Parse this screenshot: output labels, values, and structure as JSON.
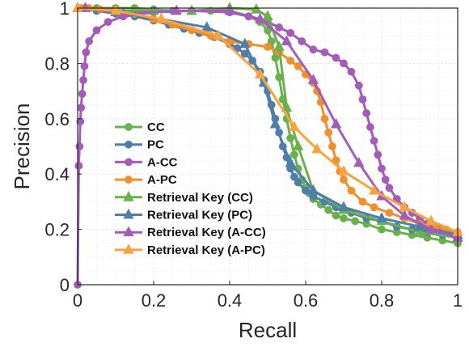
{
  "chart_data": {
    "type": "line",
    "xlabel": "Recall",
    "ylabel": "Precision",
    "xlim": [
      0,
      1
    ],
    "ylim": [
      0,
      1
    ],
    "xticks": [
      "0",
      "0.2",
      "0.4",
      "0.6",
      "0.8",
      "1"
    ],
    "yticks": [
      "0",
      "0.2",
      "0.4",
      "0.6",
      "0.8",
      "1"
    ],
    "grid": true,
    "legend_position": "center-left",
    "series": [
      {
        "name": "CC",
        "color": "#6ab04c",
        "marker": "circle",
        "x": [
          0.02,
          0.05,
          0.1,
          0.15,
          0.2,
          0.25,
          0.3,
          0.35,
          0.4,
          0.45,
          0.48,
          0.5,
          0.51,
          0.52,
          0.53,
          0.54,
          0.55,
          0.56,
          0.57,
          0.58,
          0.59,
          0.6,
          0.61,
          0.62,
          0.64,
          0.66,
          0.68,
          0.7,
          0.73,
          0.76,
          0.8,
          0.84,
          0.88,
          0.92,
          0.96,
          1.0
        ],
        "y": [
          1.0,
          1.0,
          1.0,
          1.0,
          0.995,
          0.99,
          0.99,
          0.99,
          0.985,
          0.97,
          0.95,
          0.92,
          0.88,
          0.82,
          0.75,
          0.67,
          0.6,
          0.53,
          0.47,
          0.42,
          0.38,
          0.35,
          0.33,
          0.31,
          0.29,
          0.27,
          0.25,
          0.24,
          0.23,
          0.22,
          0.2,
          0.19,
          0.18,
          0.17,
          0.16,
          0.15
        ]
      },
      {
        "name": "PC",
        "color": "#4e7fab",
        "marker": "circle",
        "x": [
          0.02,
          0.05,
          0.1,
          0.15,
          0.2,
          0.24,
          0.28,
          0.32,
          0.36,
          0.4,
          0.42,
          0.44,
          0.46,
          0.48,
          0.49,
          0.5,
          0.51,
          0.52,
          0.53,
          0.54,
          0.55,
          0.56,
          0.57,
          0.58,
          0.6,
          0.62,
          0.65,
          0.68,
          0.72,
          0.76,
          0.8,
          0.84,
          0.88,
          0.92,
          0.96,
          1.0
        ],
        "y": [
          1.0,
          0.99,
          0.98,
          0.97,
          0.955,
          0.94,
          0.925,
          0.91,
          0.895,
          0.87,
          0.855,
          0.835,
          0.81,
          0.77,
          0.74,
          0.7,
          0.65,
          0.6,
          0.55,
          0.5,
          0.46,
          0.42,
          0.39,
          0.37,
          0.34,
          0.32,
          0.3,
          0.28,
          0.26,
          0.24,
          0.23,
          0.21,
          0.2,
          0.19,
          0.18,
          0.17
        ]
      },
      {
        "name": "A-CC",
        "color": "#a35db8",
        "marker": "circle",
        "x": [
          0.0,
          0.003,
          0.005,
          0.007,
          0.009,
          0.012,
          0.015,
          0.018,
          0.022,
          0.03,
          0.05,
          0.08,
          0.12,
          0.2,
          0.3,
          0.4,
          0.45,
          0.5,
          0.53,
          0.56,
          0.59,
          0.62,
          0.65,
          0.68,
          0.7,
          0.72,
          0.74,
          0.75,
          0.76,
          0.77,
          0.78,
          0.79,
          0.8,
          0.81,
          0.82,
          0.84,
          0.86,
          0.88,
          0.9,
          0.92,
          0.95,
          1.0
        ],
        "y": [
          0.0,
          0.43,
          0.5,
          0.59,
          0.64,
          0.69,
          0.74,
          0.79,
          0.84,
          0.88,
          0.92,
          0.95,
          0.97,
          0.985,
          0.99,
          0.985,
          0.97,
          0.95,
          0.93,
          0.91,
          0.88,
          0.85,
          0.84,
          0.82,
          0.8,
          0.77,
          0.72,
          0.67,
          0.62,
          0.57,
          0.52,
          0.47,
          0.42,
          0.38,
          0.35,
          0.31,
          0.28,
          0.26,
          0.24,
          0.22,
          0.2,
          0.18
        ]
      },
      {
        "name": "A-PC",
        "color": "#f28e2b",
        "marker": "circle",
        "x": [
          0.01,
          0.03,
          0.06,
          0.1,
          0.15,
          0.2,
          0.25,
          0.3,
          0.35,
          0.4,
          0.45,
          0.5,
          0.53,
          0.56,
          0.58,
          0.6,
          0.62,
          0.63,
          0.64,
          0.65,
          0.66,
          0.67,
          0.68,
          0.69,
          0.7,
          0.72,
          0.75,
          0.78,
          0.82,
          0.86,
          0.9,
          0.94,
          0.97,
          1.0
        ],
        "y": [
          1.0,
          1.0,
          0.995,
          0.99,
          0.98,
          0.96,
          0.94,
          0.92,
          0.9,
          0.88,
          0.87,
          0.86,
          0.84,
          0.81,
          0.79,
          0.76,
          0.73,
          0.7,
          0.66,
          0.6,
          0.55,
          0.5,
          0.45,
          0.41,
          0.38,
          0.34,
          0.3,
          0.28,
          0.26,
          0.24,
          0.22,
          0.21,
          0.2,
          0.19
        ]
      },
      {
        "name": "Retrieval Key (CC)",
        "color": "#6ab04c",
        "marker": "triangle",
        "x": [
          0.0,
          0.1,
          0.2,
          0.3,
          0.4,
          0.47,
          0.5,
          0.53,
          0.55,
          0.58,
          0.62,
          0.7,
          0.8,
          0.9,
          1.0
        ],
        "y": [
          1.0,
          0.99,
          0.99,
          0.99,
          1.0,
          0.995,
          0.97,
          0.86,
          0.64,
          0.5,
          0.34,
          0.27,
          0.23,
          0.19,
          0.17
        ]
      },
      {
        "name": "Retrieval Key (PC)",
        "color": "#4e7fab",
        "marker": "triangle",
        "x": [
          0.0,
          0.1,
          0.22,
          0.34,
          0.44,
          0.49,
          0.52,
          0.56,
          0.62,
          0.7,
          0.8,
          0.9,
          1.0
        ],
        "y": [
          1.0,
          0.985,
          0.96,
          0.93,
          0.87,
          0.73,
          0.58,
          0.44,
          0.34,
          0.28,
          0.24,
          0.21,
          0.18
        ]
      },
      {
        "name": "Retrieval Key (A-CC)",
        "color": "#a35db8",
        "marker": "triangle",
        "x": [
          0.02,
          0.12,
          0.26,
          0.4,
          0.48,
          0.55,
          0.62,
          0.68,
          0.74,
          0.8,
          0.86,
          0.93,
          1.0
        ],
        "y": [
          1.0,
          0.98,
          0.99,
          0.99,
          0.96,
          0.88,
          0.74,
          0.58,
          0.44,
          0.32,
          0.25,
          0.2,
          0.17
        ]
      },
      {
        "name": "Retrieval Key (A-PC)",
        "color": "#f7a440",
        "marker": "triangle",
        "x": [
          0.0,
          0.1,
          0.22,
          0.37,
          0.48,
          0.57,
          0.63,
          0.7,
          0.78,
          0.86,
          0.93,
          1.0
        ],
        "y": [
          1.0,
          0.99,
          0.96,
          0.9,
          0.76,
          0.57,
          0.49,
          0.41,
          0.34,
          0.28,
          0.23,
          0.19
        ]
      }
    ]
  }
}
